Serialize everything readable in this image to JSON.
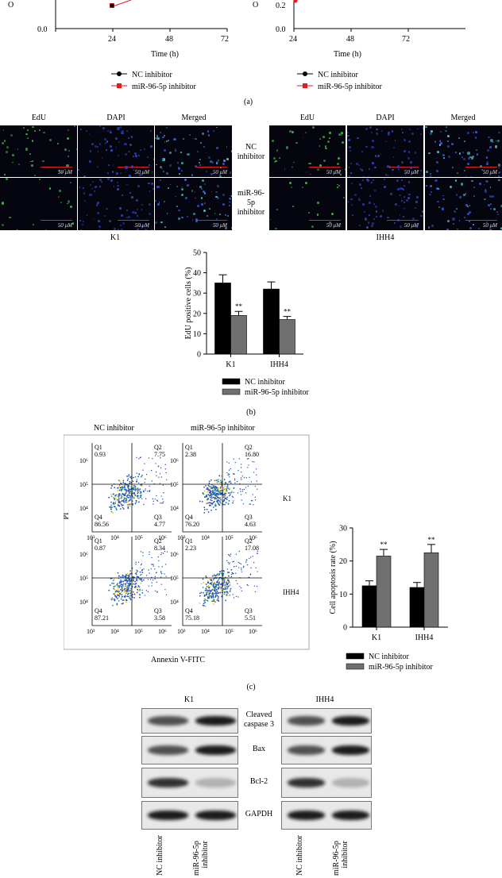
{
  "panel_a": {
    "label": "(a)",
    "charts": [
      {
        "xticks": [
          "24",
          "48",
          "72"
        ],
        "yticks": [
          "0.0"
        ],
        "xlabel": "Time (h)",
        "ylabel_partial": "O"
      },
      {
        "xticks": [
          "24",
          "48",
          "72"
        ],
        "yticks": [
          "0.2",
          "0.0"
        ],
        "xlabel": "Time (h)",
        "ylabel_partial": "O"
      }
    ],
    "legend": [
      {
        "name": "NC inhibitor",
        "color": "#000000",
        "marker": "circle"
      },
      {
        "name": "miR-96-5p inhibitor",
        "color": "#e31a1c",
        "marker": "square"
      }
    ]
  },
  "panel_b": {
    "label": "(b)",
    "columns": [
      "EdU",
      "DAPI",
      "Merged"
    ],
    "row_labels": {
      "nc": "NC\ninhibitor",
      "mir": "miR-96-\n5p\ninhibitor"
    },
    "scale_bar": "50 μM",
    "cell_lines": [
      "K1",
      "IHH4"
    ]
  },
  "panel_c": {
    "label": "(c)",
    "titles": [
      "NC inhibitor",
      "miR-96-5p inhibitor"
    ],
    "row_labels": [
      "K1",
      "IHH4"
    ],
    "ylabel": "PI",
    "xlabel": "Annexin V-FITC",
    "ticks": [
      "10³",
      "10⁴",
      "10⁵",
      "10⁶"
    ],
    "plots": [
      {
        "q1": "0.93",
        "q2": "7.75",
        "q3": "4.77",
        "q4": "86.56"
      },
      {
        "q1": "2.38",
        "q2": "16.80",
        "q3": "4.63",
        "q4": "76.20"
      },
      {
        "q1": "0.87",
        "q2": "8.34",
        "q3": "3.58",
        "q4": "87.21"
      },
      {
        "q1": "2.23",
        "q2": "17.08",
        "q3": "5.51",
        "q4": "75.18"
      }
    ],
    "qlabels": [
      "Q1",
      "Q2",
      "Q3",
      "Q4"
    ]
  },
  "panel_d": {
    "cell_lines": [
      "K1",
      "IHH4"
    ],
    "proteins": [
      "Cleaved\ncaspase 3",
      "Bax",
      "Bcl-2",
      "GAPDH"
    ],
    "lanes": [
      "NC inhibitor",
      "miR-96-5p\ninhibitor"
    ],
    "intensity": {
      "cleaved_caspase3": [
        0.7,
        0.95
      ],
      "bax": [
        0.7,
        0.95
      ],
      "bcl2": [
        0.85,
        0.25
      ],
      "gapdh": [
        0.95,
        0.95
      ]
    }
  },
  "chart_data": [
    {
      "type": "bar",
      "categories": [
        "K1",
        "IHH4"
      ],
      "series": [
        {
          "name": "NC inhibitor",
          "values": [
            35,
            32
          ],
          "errors": [
            4,
            3.5
          ],
          "color": "#000000"
        },
        {
          "name": "miR-96-5p inhibitor",
          "values": [
            19,
            17
          ],
          "errors": [
            2,
            1.5
          ],
          "color": "#707070"
        }
      ],
      "ylabel": "EdU positive cells (%)",
      "ylim": [
        0,
        50
      ],
      "yticks": [
        "0",
        "10",
        "20",
        "30",
        "40",
        "50"
      ],
      "significance": [
        "**",
        "**"
      ],
      "legend": "bottom"
    },
    {
      "type": "bar",
      "categories": [
        "K1",
        "IHH4"
      ],
      "series": [
        {
          "name": "NC inhibitor",
          "values": [
            12.5,
            12
          ],
          "errors": [
            1.5,
            1.5
          ],
          "color": "#000000"
        },
        {
          "name": "miR-96-5p inhibitor",
          "values": [
            21.5,
            22.5
          ],
          "errors": [
            2,
            2.5
          ],
          "color": "#707070"
        }
      ],
      "ylabel": "Cell apoptosis rate (%)",
      "ylim": [
        0,
        30
      ],
      "yticks": [
        "0",
        "10",
        "20",
        "30"
      ],
      "significance": [
        "**",
        "**"
      ],
      "legend": "bottom"
    }
  ]
}
